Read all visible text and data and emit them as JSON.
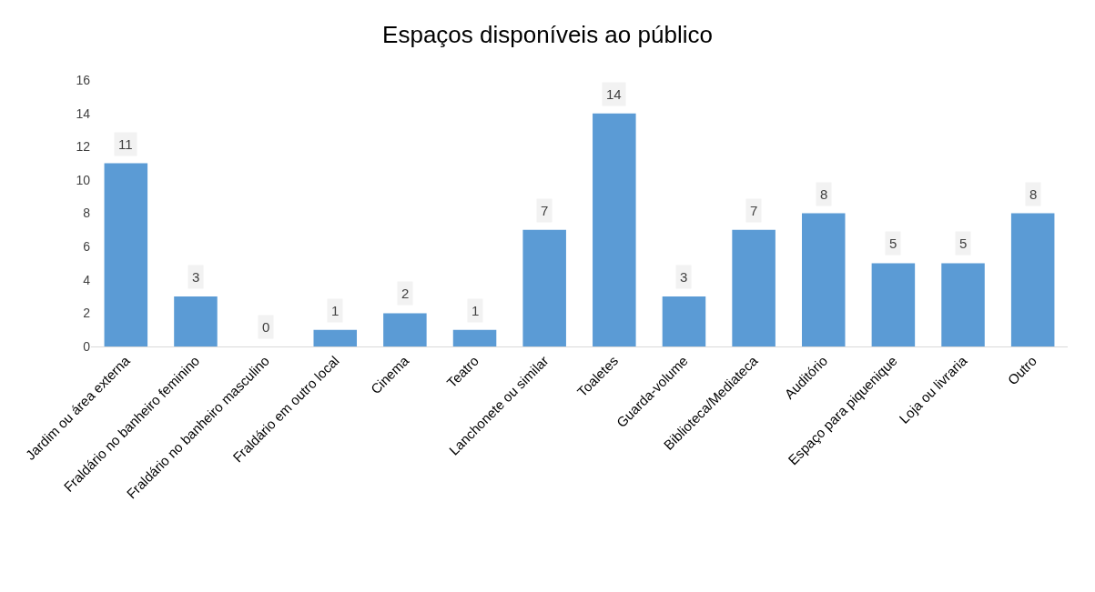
{
  "chart_data": {
    "type": "bar",
    "title": "Espaços disponíveis ao público",
    "categories": [
      "Jardim ou área externa",
      "Fraldário no banheiro feminino",
      "Fraldário no banheiro masculino",
      "Fraldário em outro local",
      "Cinema",
      "Teatro",
      "Lanchonete ou similar",
      "Toaletes",
      "Guarda-volume",
      "Biblioteca/Mediateca",
      "Auditório",
      "Espaço para piquenique",
      "Loja ou livraria",
      "Outro"
    ],
    "values": [
      11,
      3,
      0,
      1,
      2,
      1,
      7,
      14,
      3,
      7,
      8,
      5,
      5,
      8
    ],
    "color": "#5b9bd5",
    "ylim": [
      0,
      16
    ],
    "yticks": [
      0,
      2,
      4,
      6,
      8,
      10,
      12,
      14,
      16
    ],
    "grid": false,
    "legend": false,
    "data_labels": true
  }
}
